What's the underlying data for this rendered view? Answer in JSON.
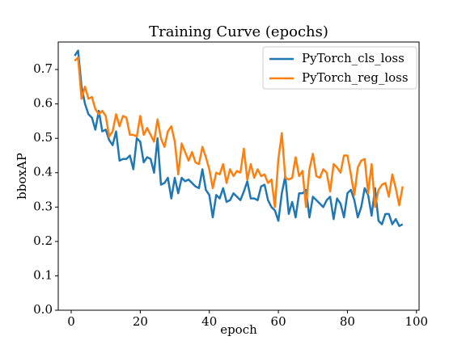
{
  "chart_data": {
    "type": "line",
    "title": "Training Curve (epochs)",
    "xlabel": "epoch",
    "ylabel": "bboxAP",
    "x": [
      1,
      2,
      3,
      4,
      5,
      6,
      7,
      8,
      9,
      10,
      11,
      12,
      13,
      14,
      15,
      16,
      17,
      18,
      19,
      20,
      21,
      22,
      23,
      24,
      25,
      26,
      27,
      28,
      29,
      30,
      31,
      32,
      33,
      34,
      35,
      36,
      37,
      38,
      39,
      40,
      41,
      42,
      43,
      44,
      45,
      46,
      47,
      48,
      49,
      50,
      51,
      52,
      53,
      54,
      55,
      56,
      57,
      58,
      59,
      60,
      61,
      62,
      63,
      64,
      65,
      66,
      67,
      68,
      69,
      70,
      71,
      72,
      73,
      74,
      75,
      76,
      77,
      78,
      79,
      80,
      81,
      82,
      83,
      84,
      85,
      86,
      87,
      88,
      89,
      90,
      91,
      92,
      93,
      94,
      95,
      96
    ],
    "series": [
      {
        "name": "PyTorch_cls_loss",
        "color": "#1f77b4",
        "values": [
          0.74,
          0.755,
          0.65,
          0.6,
          0.57,
          0.56,
          0.525,
          0.58,
          0.52,
          0.525,
          0.495,
          0.48,
          0.52,
          0.435,
          0.44,
          0.44,
          0.45,
          0.41,
          0.5,
          0.49,
          0.43,
          0.445,
          0.44,
          0.4,
          0.5,
          0.365,
          0.37,
          0.385,
          0.325,
          0.385,
          0.34,
          0.385,
          0.375,
          0.38,
          0.37,
          0.36,
          0.355,
          0.41,
          0.35,
          0.335,
          0.27,
          0.335,
          0.325,
          0.355,
          0.315,
          0.32,
          0.34,
          0.33,
          0.32,
          0.345,
          0.375,
          0.325,
          0.325,
          0.32,
          0.36,
          0.365,
          0.32,
          0.3,
          0.29,
          0.26,
          0.34,
          0.39,
          0.28,
          0.315,
          0.27,
          0.34,
          0.34,
          0.35,
          0.27,
          0.33,
          0.32,
          0.31,
          0.3,
          0.32,
          0.33,
          0.265,
          0.325,
          0.31,
          0.27,
          0.34,
          0.35,
          0.32,
          0.27,
          0.3,
          0.355,
          0.335,
          0.275,
          0.355,
          0.26,
          0.25,
          0.28,
          0.28,
          0.25,
          0.265,
          0.245,
          0.25
        ]
      },
      {
        "name": "PyTorch_reg_loss",
        "color": "#ff7f0e",
        "values": [
          0.725,
          0.735,
          0.615,
          0.65,
          0.615,
          0.62,
          0.585,
          0.57,
          0.58,
          0.565,
          0.505,
          0.52,
          0.57,
          0.535,
          0.565,
          0.56,
          0.51,
          0.51,
          0.505,
          0.565,
          0.51,
          0.53,
          0.51,
          0.49,
          0.555,
          0.5,
          0.475,
          0.52,
          0.535,
          0.49,
          0.395,
          0.485,
          0.46,
          0.435,
          0.46,
          0.43,
          0.425,
          0.475,
          0.445,
          0.41,
          0.355,
          0.4,
          0.395,
          0.425,
          0.37,
          0.41,
          0.39,
          0.405,
          0.4,
          0.47,
          0.38,
          0.425,
          0.385,
          0.41,
          0.39,
          0.395,
          0.37,
          0.38,
          0.3,
          0.44,
          0.515,
          0.385,
          0.38,
          0.385,
          0.445,
          0.39,
          0.405,
          0.3,
          0.41,
          0.455,
          0.39,
          0.385,
          0.41,
          0.4,
          0.345,
          0.425,
          0.415,
          0.4,
          0.45,
          0.45,
          0.395,
          0.335,
          0.415,
          0.435,
          0.44,
          0.34,
          0.425,
          0.3,
          0.35,
          0.365,
          0.37,
          0.33,
          0.395,
          0.355,
          0.305,
          0.36
        ]
      }
    ],
    "xlim": [
      -3.75,
      100.75
    ],
    "xticks": [
      0,
      20,
      40,
      60,
      80,
      100
    ],
    "ylim": [
      0,
      0.78
    ],
    "yticks": [
      {
        "value": 0,
        "label": "0.0"
      },
      0.1,
      0.2,
      0.3,
      0.4,
      0.5,
      0.6,
      0.7
    ],
    "legend": "upper right"
  }
}
